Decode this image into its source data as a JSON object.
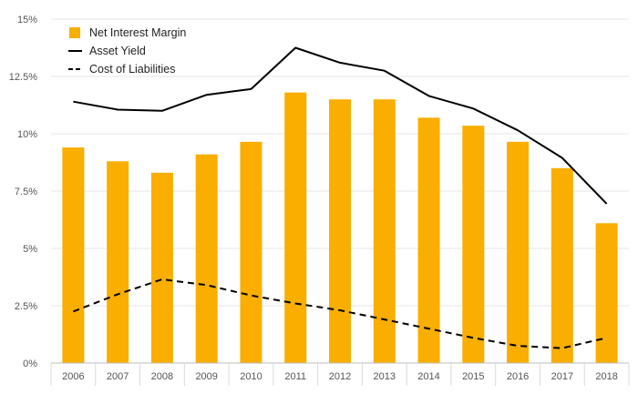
{
  "chart_data": {
    "type": "bar",
    "title": "",
    "xlabel": "",
    "ylabel": "",
    "categories": [
      "2006",
      "2007",
      "2008",
      "2009",
      "2010",
      "2011",
      "2012",
      "2013",
      "2014",
      "2015",
      "2016",
      "2017",
      "2018"
    ],
    "ylim": [
      0,
      15
    ],
    "yticks": [
      {
        "value": 0,
        "label": "0%"
      },
      {
        "value": 2.5,
        "label": "2.5%"
      },
      {
        "value": 5,
        "label": "5%"
      },
      {
        "value": 7.5,
        "label": "7.5%"
      },
      {
        "value": 10,
        "label": "10%"
      },
      {
        "value": 12.5,
        "label": "12.5%"
      },
      {
        "value": 15,
        "label": "15%"
      }
    ],
    "grid": true,
    "legend_position": "top-left",
    "series": [
      {
        "name": "Net Interest Margin",
        "type": "bar",
        "color": "#f9ae00",
        "values": [
          9.4,
          8.8,
          8.3,
          9.1,
          9.65,
          11.8,
          11.5,
          11.5,
          10.7,
          10.35,
          9.65,
          8.5,
          6.1
        ]
      },
      {
        "name": "Asset Yield",
        "type": "line",
        "style": "solid",
        "color": "#000000",
        "values": [
          11.4,
          11.05,
          11.0,
          11.7,
          11.95,
          13.75,
          13.1,
          12.75,
          11.65,
          11.1,
          10.15,
          8.95,
          6.95
        ]
      },
      {
        "name": "Cost of Liabilities",
        "type": "line",
        "style": "dashed",
        "color": "#000000",
        "values": [
          2.25,
          3.0,
          3.65,
          3.4,
          2.95,
          2.6,
          2.3,
          1.9,
          1.5,
          1.1,
          0.75,
          0.65,
          1.1
        ]
      }
    ]
  }
}
